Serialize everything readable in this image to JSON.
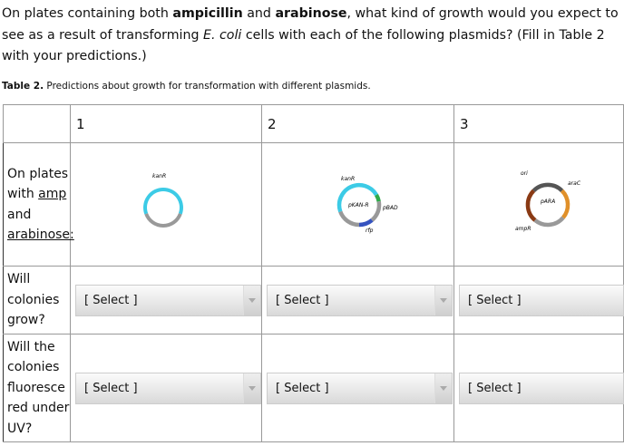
{
  "question": [
    "On plates containing both ",
    "ampicillin",
    " and ",
    "arabinose",
    ", what kind of growth would you expect to see as a result of transforming ",
    "E. coli",
    " cells with each of the following plasmids? (Fill in Table 2 with your predictions.)"
  ],
  "caption": {
    "label": "Table 2.",
    "text": " Predictions about growth for transformation with different plasmids."
  },
  "table": {
    "headers": [
      "1",
      "2",
      "3"
    ],
    "row_labels": [
      [
        "On plates with ",
        "amp",
        " and ",
        "arabinose:"
      ],
      [
        "Will colonies grow?"
      ],
      [
        "Will the colonies fluoresce red under UV?"
      ]
    ],
    "plasmids": [
      {
        "labels": [
          "kanR"
        ]
      },
      {
        "labels": [
          "kanR",
          "pKAN-R",
          "pBAD",
          "rfp"
        ]
      },
      {
        "labels": [
          "ori",
          "araC",
          "pARA",
          "ampR"
        ]
      }
    ],
    "selects": [
      [
        "[ Select ]",
        "[ Select ]",
        "[ Select ]"
      ],
      [
        "[ Select ]",
        "[ Select ]",
        "[ Select ]"
      ]
    ]
  }
}
